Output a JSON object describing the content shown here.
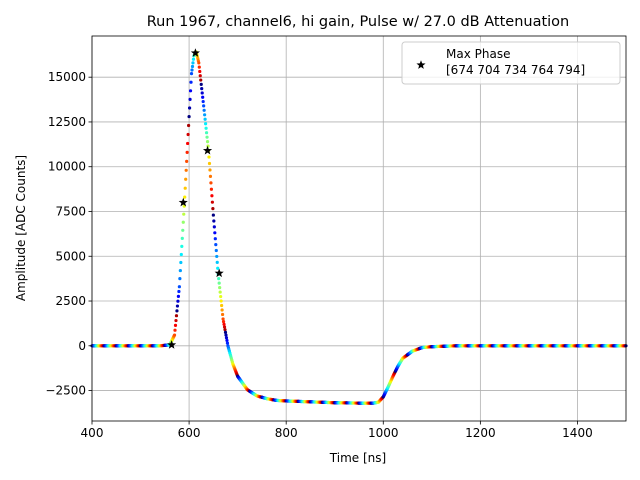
{
  "chart_data": {
    "type": "scatter",
    "title": "Run 1967, channel6, hi gain, Pulse w/ 27.0 dB Attenuation",
    "xlabel": "Time [ns]",
    "ylabel": "Amplitude [ADC Counts]",
    "xlim": [
      400,
      1500
    ],
    "ylim": [
      -4200,
      17300
    ],
    "xticks": [
      400,
      600,
      800,
      1000,
      1200,
      1400
    ],
    "yticks": [
      -2500,
      0,
      2500,
      5000,
      7500,
      10000,
      12500,
      15000
    ],
    "xtick_labels": [
      "400",
      "600",
      "800",
      "1000",
      "1200",
      "1400"
    ],
    "ytick_labels": [
      "−2500",
      "0",
      "2500",
      "5000",
      "7500",
      "10000",
      "12500",
      "15000"
    ],
    "grid": true,
    "legend": {
      "placement": "upper right",
      "entries": [
        {
          "marker": "star",
          "line1": "Max Phase",
          "line2": "[674 704 734 764 794]"
        }
      ]
    },
    "series": [
      {
        "name": "pulse waveform (colored by phase)",
        "kind": "dense scatter",
        "colormap": "jet",
        "waveform_knots": {
          "x": [
            400,
            540,
            560,
            570,
            580,
            590,
            600,
            605,
            610,
            615,
            620,
            630,
            640,
            650,
            660,
            670,
            680,
            690,
            700,
            720,
            740,
            760,
            780,
            800,
            850,
            900,
            950,
            980,
            990,
            1000,
            1010,
            1020,
            1030,
            1040,
            1060,
            1080,
            1100,
            1150,
            1200,
            1300,
            1400,
            1500
          ],
          "y": [
            0,
            0,
            50,
            600,
            3300,
            7800,
            12800,
            15200,
            16200,
            16400,
            15800,
            13400,
            10900,
            7300,
            4000,
            1500,
            0,
            -1000,
            -1700,
            -2450,
            -2800,
            -2950,
            -3050,
            -3080,
            -3130,
            -3180,
            -3200,
            -3200,
            -3150,
            -2850,
            -2300,
            -1700,
            -1150,
            -700,
            -300,
            -100,
            -50,
            0,
            0,
            0,
            0,
            0
          ]
        }
      },
      {
        "name": "Max Phase",
        "kind": "markers",
        "marker": "star",
        "color": "#000000",
        "x": [
          564,
          588,
          613,
          638,
          662
        ],
        "y": [
          50,
          8000,
          16350,
          10900,
          4050
        ]
      }
    ]
  }
}
